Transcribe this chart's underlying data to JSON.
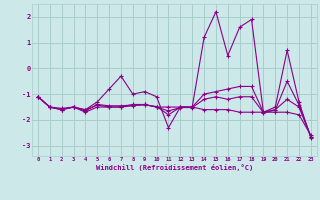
{
  "xlabel": "Windchill (Refroidissement éolien,°C)",
  "x": [
    0,
    1,
    2,
    3,
    4,
    5,
    6,
    7,
    8,
    9,
    10,
    11,
    12,
    13,
    14,
    15,
    16,
    17,
    18,
    19,
    20,
    21,
    22,
    23
  ],
  "line1": [
    -1.1,
    -1.5,
    -1.6,
    -1.5,
    -1.6,
    -1.3,
    -0.8,
    -0.3,
    -1.0,
    -0.9,
    -1.1,
    -2.3,
    -1.5,
    -1.5,
    1.2,
    2.2,
    0.5,
    1.6,
    1.9,
    -1.7,
    -1.5,
    0.7,
    -1.3,
    -2.7
  ],
  "line2": [
    -1.1,
    -1.5,
    -1.6,
    -1.5,
    -1.7,
    -1.5,
    -1.5,
    -1.5,
    -1.4,
    -1.4,
    -1.5,
    -1.5,
    -1.5,
    -1.5,
    -1.6,
    -1.6,
    -1.6,
    -1.7,
    -1.7,
    -1.7,
    -1.7,
    -1.7,
    -1.8,
    -2.6
  ],
  "line3": [
    -1.1,
    -1.5,
    -1.55,
    -1.5,
    -1.65,
    -1.4,
    -1.45,
    -1.45,
    -1.42,
    -1.42,
    -1.48,
    -1.8,
    -1.5,
    -1.5,
    -1.0,
    -0.9,
    -0.8,
    -0.7,
    -0.7,
    -1.7,
    -1.6,
    -1.2,
    -1.5,
    -2.65
  ],
  "line4": [
    -1.1,
    -1.5,
    -1.6,
    -1.5,
    -1.62,
    -1.42,
    -1.5,
    -1.5,
    -1.45,
    -1.4,
    -1.5,
    -1.65,
    -1.52,
    -1.52,
    -1.2,
    -1.1,
    -1.2,
    -1.1,
    -1.1,
    -1.72,
    -1.62,
    -0.5,
    -1.42,
    -2.65
  ],
  "bg_color": "#cde8e8",
  "grid_color": "#a8cccc",
  "line_color": "#880088",
  "ylim": [
    -3.4,
    2.5
  ],
  "yticks": [
    -3,
    -2,
    -1,
    0,
    1,
    2
  ],
  "xlim": [
    -0.5,
    23.5
  ]
}
